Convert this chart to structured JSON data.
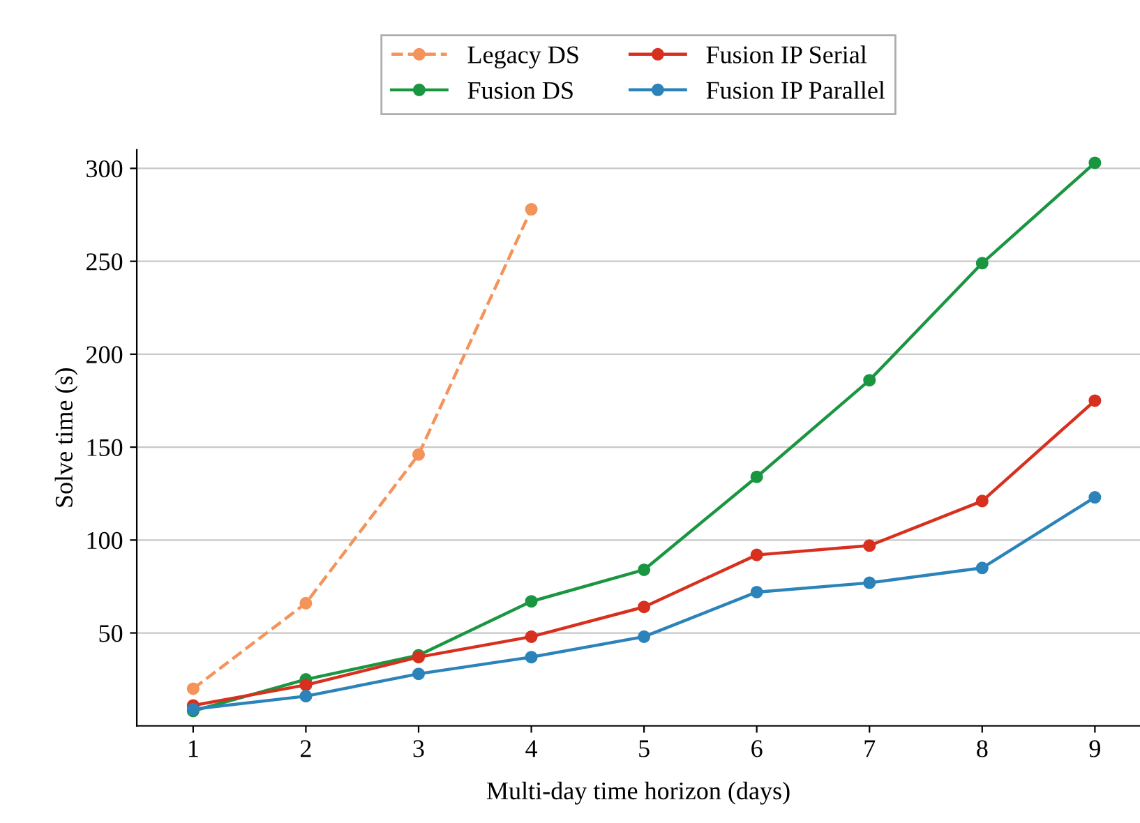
{
  "chart_data": {
    "type": "line",
    "xlabel": "Multi-day time horizon (days)",
    "ylabel": "Solve time (s)",
    "x": [
      1,
      2,
      3,
      4,
      5,
      6,
      7,
      8,
      9
    ],
    "xlim": [
      0.5,
      9.4
    ],
    "xticks": [
      1,
      2,
      3,
      4,
      5,
      6,
      7,
      8,
      9
    ],
    "ylim": [
      0,
      310
    ],
    "yticks": [
      50,
      100,
      150,
      200,
      250,
      300
    ],
    "grid": "y",
    "legend": "top",
    "marker": "circle",
    "series": [
      {
        "name": "Legacy DS",
        "color": "#f4935a",
        "line_style": "dashed",
        "x": [
          1,
          2,
          3,
          4
        ],
        "values": [
          20,
          66,
          146,
          278
        ]
      },
      {
        "name": "Fusion DS",
        "color": "#1a9641",
        "line_style": "solid",
        "values": [
          8,
          25,
          38,
          67,
          84,
          134,
          186,
          249,
          303
        ]
      },
      {
        "name": "Fusion IP Serial",
        "color": "#d7301f",
        "line_style": "solid",
        "values": [
          11,
          22,
          37,
          48,
          64,
          92,
          97,
          121,
          175
        ]
      },
      {
        "name": "Fusion IP Parallel",
        "color": "#2b83ba",
        "line_style": "solid",
        "values": [
          9,
          16,
          28,
          37,
          48,
          72,
          77,
          85,
          123
        ]
      }
    ]
  }
}
